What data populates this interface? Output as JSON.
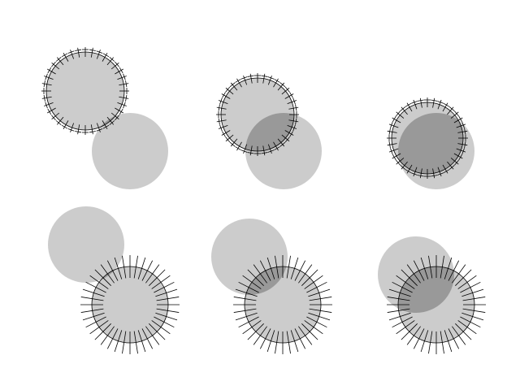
{
  "colors": {
    "background": "#ffffff",
    "disk": "#cccccc",
    "overlap": "#999999",
    "tick": "#000000"
  },
  "panels": [
    {
      "id": "top-left",
      "tick_count": 36,
      "tick_style": "crossed"
    },
    {
      "id": "top-middle",
      "tick_count": 36,
      "tick_style": "crossed"
    },
    {
      "id": "top-right",
      "tick_count": 36,
      "tick_style": "crossed"
    },
    {
      "id": "bottom-left",
      "tick_count": 40,
      "tick_style": "radial"
    },
    {
      "id": "bottom-middle",
      "tick_count": 40,
      "tick_style": "radial"
    },
    {
      "id": "bottom-right",
      "tick_count": 40,
      "tick_style": "radial"
    }
  ]
}
